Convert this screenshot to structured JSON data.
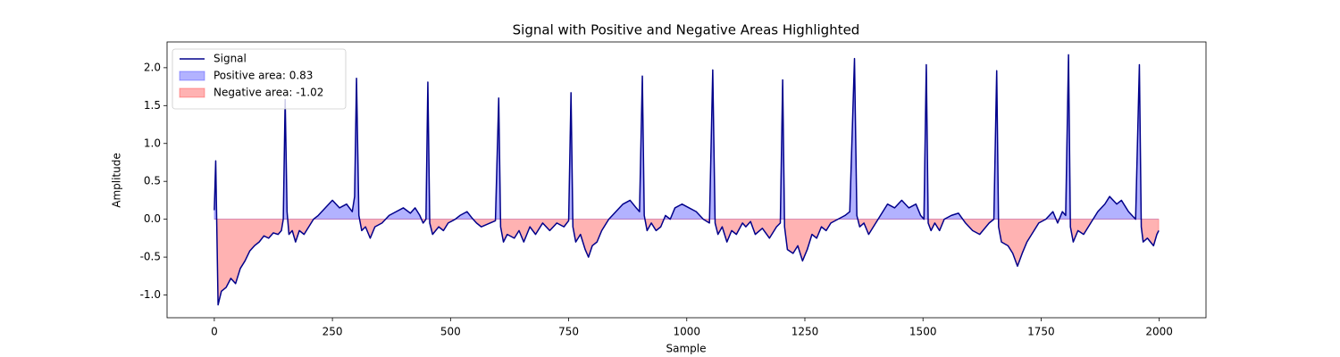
{
  "chart_data": {
    "type": "line",
    "title": "Signal with Positive and Negative Areas Highlighted",
    "xlabel": "Sample",
    "ylabel": "Amplitude",
    "xlim": [
      -100,
      2099
    ],
    "ylim": [
      -1.3,
      2.34
    ],
    "xticks": [
      0,
      250,
      500,
      750,
      1000,
      1250,
      1500,
      1750,
      2000
    ],
    "yticks": [
      {
        "value": -1,
        "label": "-1.0"
      },
      -0.5,
      {
        "value": 0,
        "label": "0.0"
      },
      0.5,
      {
        "value": 1,
        "label": "1.0"
      },
      1.5,
      {
        "value": 2,
        "label": "2.0"
      }
    ],
    "legend": "upper left",
    "x": [
      0,
      3,
      8,
      15,
      25,
      35,
      45,
      55,
      65,
      75,
      85,
      95,
      105,
      115,
      125,
      135,
      142,
      146,
      150,
      154,
      158,
      165,
      172,
      180,
      190,
      200,
      210,
      220,
      235,
      250,
      265,
      280,
      292,
      297,
      301,
      306,
      312,
      320,
      330,
      340,
      355,
      370,
      385,
      400,
      415,
      425,
      435,
      442,
      448,
      452,
      456,
      462,
      475,
      485,
      495,
      510,
      520,
      535,
      545,
      555,
      565,
      595,
      602,
      606,
      612,
      620,
      635,
      645,
      655,
      668,
      680,
      695,
      710,
      725,
      740,
      750,
      755,
      759,
      765,
      775,
      785,
      792,
      800,
      810,
      820,
      835,
      850,
      865,
      880,
      893,
      900,
      906,
      910,
      916,
      925,
      935,
      945,
      955,
      965,
      975,
      990,
      1005,
      1020,
      1035,
      1048,
      1055,
      1060,
      1066,
      1075,
      1085,
      1095,
      1105,
      1118,
      1125,
      1135,
      1145,
      1160,
      1175,
      1190,
      1198,
      1203,
      1207,
      1213,
      1225,
      1235,
      1245,
      1255,
      1265,
      1275,
      1285,
      1295,
      1305,
      1320,
      1335,
      1345,
      1355,
      1360,
      1366,
      1375,
      1385,
      1395,
      1405,
      1415,
      1425,
      1440,
      1455,
      1470,
      1485,
      1495,
      1502,
      1507,
      1511,
      1517,
      1525,
      1535,
      1545,
      1560,
      1575,
      1590,
      1605,
      1620,
      1640,
      1650,
      1656,
      1660,
      1666,
      1680,
      1690,
      1700,
      1710,
      1720,
      1730,
      1745,
      1760,
      1775,
      1785,
      1795,
      1802,
      1808,
      1812,
      1818,
      1828,
      1840,
      1855,
      1870,
      1885,
      1895,
      1910,
      1920,
      1935,
      1950,
      1958,
      1962,
      1966,
      1975,
      1988,
      1995,
      1999
    ],
    "series": [
      {
        "name": "Signal",
        "color": "#00008b",
        "values": [
          0.12,
          0.77,
          -1.13,
          -0.95,
          -0.9,
          -0.78,
          -0.85,
          -0.65,
          -0.55,
          -0.42,
          -0.35,
          -0.3,
          -0.22,
          -0.25,
          -0.18,
          -0.2,
          -0.15,
          0.0,
          1.58,
          0.1,
          -0.2,
          -0.15,
          -0.3,
          -0.15,
          -0.2,
          -0.1,
          0.0,
          0.05,
          0.15,
          0.25,
          0.15,
          0.2,
          0.1,
          0.3,
          1.86,
          0.05,
          -0.15,
          -0.1,
          -0.25,
          -0.1,
          -0.05,
          0.05,
          0.1,
          0.15,
          0.08,
          0.15,
          0.05,
          -0.05,
          0.0,
          1.81,
          -0.05,
          -0.2,
          -0.1,
          -0.15,
          -0.05,
          0.0,
          0.05,
          0.1,
          0.02,
          -0.05,
          -0.1,
          -0.02,
          1.6,
          -0.1,
          -0.3,
          -0.2,
          -0.25,
          -0.15,
          -0.3,
          -0.1,
          -0.2,
          -0.05,
          -0.15,
          -0.05,
          -0.1,
          -0.02,
          1.67,
          -0.1,
          -0.3,
          -0.2,
          -0.4,
          -0.5,
          -0.35,
          -0.3,
          -0.15,
          0.0,
          0.1,
          0.2,
          0.25,
          0.15,
          0.1,
          1.89,
          0.05,
          -0.15,
          -0.05,
          -0.15,
          -0.1,
          0.05,
          0.0,
          0.15,
          0.2,
          0.15,
          0.1,
          0.0,
          -0.05,
          1.97,
          -0.05,
          -0.2,
          -0.1,
          -0.3,
          -0.15,
          -0.2,
          -0.05,
          -0.1,
          -0.03,
          -0.2,
          -0.12,
          -0.25,
          -0.1,
          -0.05,
          1.84,
          -0.1,
          -0.4,
          -0.45,
          -0.35,
          -0.55,
          -0.4,
          -0.2,
          -0.25,
          -0.1,
          -0.15,
          -0.05,
          0.0,
          0.05,
          0.1,
          2.12,
          0.05,
          -0.1,
          -0.05,
          -0.2,
          -0.1,
          0.0,
          0.1,
          0.2,
          0.15,
          0.25,
          0.15,
          0.2,
          0.05,
          0.0,
          2.04,
          -0.05,
          -0.15,
          -0.05,
          -0.15,
          0.0,
          0.05,
          0.08,
          -0.05,
          -0.15,
          -0.2,
          -0.05,
          0.0,
          1.96,
          -0.1,
          -0.3,
          -0.35,
          -0.45,
          -0.62,
          -0.45,
          -0.3,
          -0.2,
          -0.05,
          0.0,
          0.1,
          -0.05,
          0.1,
          0.05,
          2.17,
          -0.1,
          -0.3,
          -0.15,
          -0.2,
          -0.05,
          0.1,
          0.2,
          0.3,
          0.2,
          0.25,
          0.1,
          0.0,
          2.04,
          -0.1,
          -0.3,
          -0.25,
          -0.35,
          -0.2,
          -0.15
        ]
      }
    ],
    "fills": [
      {
        "name": "Positive area: 0.83",
        "color": "#0000ff",
        "where": "above"
      },
      {
        "name": "Negative area: -1.02",
        "color": "#ff0000",
        "where": "below"
      }
    ]
  }
}
